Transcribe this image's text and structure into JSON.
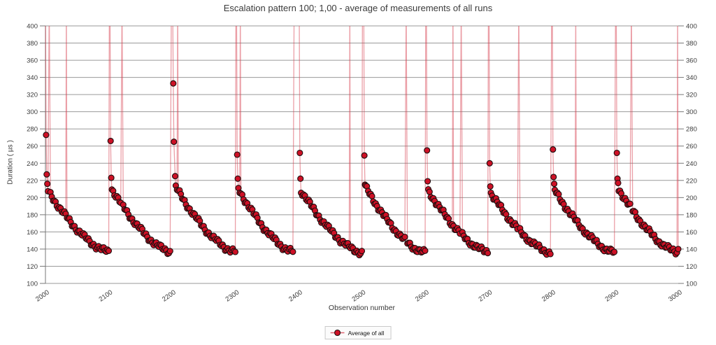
{
  "chart_data": {
    "type": "line",
    "title": "Escalation pattern 100; 1,00 - average of measurements of all runs",
    "xlabel": "Observation number",
    "ylabel": "Duration ( µs )",
    "xlim": [
      2000,
      3000
    ],
    "ylim": [
      100,
      400
    ],
    "x_ticks": [
      2000,
      2100,
      2200,
      2300,
      2400,
      2500,
      2600,
      2700,
      2800,
      2900,
      3000
    ],
    "y_ticks": [
      100,
      120,
      140,
      160,
      180,
      200,
      220,
      240,
      260,
      280,
      300,
      320,
      340,
      360,
      380,
      400
    ],
    "grid": "horizontal-only",
    "y_axis_mirrored_right": true,
    "legend": {
      "position": "bottom-center",
      "label": "Average of all"
    },
    "colors": {
      "marker_fill": "#CE1126",
      "marker_stroke": "#1a0e0e",
      "line": "#D84050",
      "grid": "#9a9a9a",
      "axis": "#777777",
      "text": "#3c3c3c"
    },
    "series": [
      {
        "name": "Average of all",
        "spike_value_clipped": 430,
        "spike_runs": [
          [
            2000,
            2000
          ],
          [
            2006,
            2006
          ],
          [
            2033,
            2033
          ],
          [
            2101,
            2102
          ],
          [
            2121,
            2121
          ],
          [
            2199,
            2201
          ],
          [
            2209,
            2209
          ],
          [
            2301,
            2302
          ],
          [
            2308,
            2308
          ],
          [
            2393,
            2401
          ],
          [
            2481,
            2481
          ],
          [
            2501,
            2503
          ],
          [
            2570,
            2570
          ],
          [
            2601,
            2602
          ],
          [
            2644,
            2644
          ],
          [
            2657,
            2657
          ],
          [
            2700,
            2701
          ],
          [
            2748,
            2748
          ],
          [
            2800,
            2801
          ],
          [
            2838,
            2838
          ],
          [
            2901,
            2902
          ],
          [
            2926,
            2926
          ],
          [
            2999,
            2999
          ]
        ],
        "head_points": [
          [
            2001,
            273
          ],
          [
            2002,
            227
          ],
          [
            2003,
            216
          ],
          [
            2103,
            266
          ],
          [
            2104,
            223
          ],
          [
            2202,
            333
          ],
          [
            2203,
            265
          ],
          [
            2205,
            225
          ],
          [
            2303,
            250
          ],
          [
            2304,
            222
          ],
          [
            2402,
            252
          ],
          [
            2403,
            222
          ],
          [
            2504,
            249
          ],
          [
            2505,
            215
          ],
          [
            2603,
            255
          ],
          [
            2604,
            219
          ],
          [
            2702,
            240
          ],
          [
            2703,
            213
          ],
          [
            2802,
            256
          ],
          [
            2803,
            224
          ],
          [
            2804,
            216
          ],
          [
            2903,
            252
          ],
          [
            2904,
            222
          ],
          [
            2905,
            217
          ],
          [
            3000,
            140
          ]
        ],
        "decay_segments": [
          [
            2004,
            2100,
            208,
            137
          ],
          [
            2105,
            2198,
            210,
            137
          ],
          [
            2206,
            2300,
            212,
            137
          ],
          [
            2305,
            2392,
            210,
            137
          ],
          [
            2404,
            2500,
            208,
            136
          ],
          [
            2506,
            2600,
            212,
            136
          ],
          [
            2605,
            2699,
            208,
            137
          ],
          [
            2704,
            2799,
            205,
            136
          ],
          [
            2805,
            2900,
            208,
            136
          ],
          [
            2906,
            2998,
            210,
            137
          ]
        ],
        "decay_exponent": 1.55,
        "noise_amplitude": 3.5
      }
    ]
  }
}
